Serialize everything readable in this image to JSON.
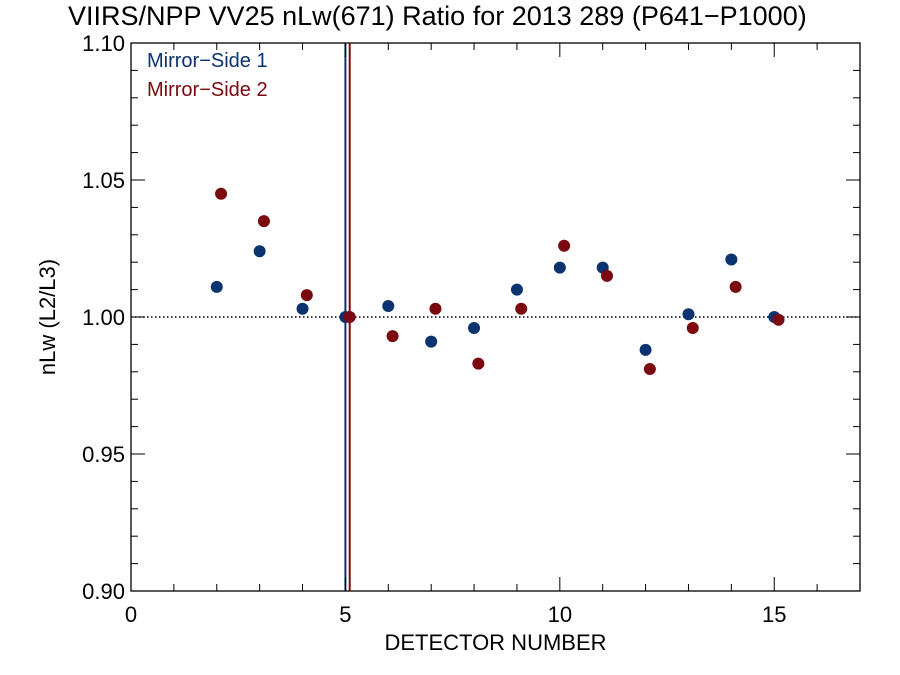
{
  "chart_data": {
    "type": "scatter",
    "title": "VIIRS/NPP VV25 nLw(671) Ratio for 2013 289 (P641−P1000)",
    "xlabel": "DETECTOR NUMBER",
    "ylabel": "nLw (L2/L3)",
    "xlim": [
      0,
      17
    ],
    "ylim": [
      0.9,
      1.1
    ],
    "x_ticks": [
      0,
      5,
      10,
      15
    ],
    "y_ticks": [
      0.9,
      0.95,
      1.0,
      1.05,
      1.1
    ],
    "x_tick_labels": [
      "0",
      "5",
      "10",
      "15"
    ],
    "y_tick_labels": [
      "0.90",
      "0.95",
      "1.00",
      "1.05",
      "1.10"
    ],
    "reference_line": {
      "y": 1.0,
      "style": "dotted",
      "color": "#000000"
    },
    "legend_position": "top-left",
    "series": [
      {
        "name": "Mirror−Side 1",
        "color": "#0b3370",
        "vline_x": 5,
        "points": [
          [
            2,
            1.011
          ],
          [
            3,
            1.024
          ],
          [
            4,
            1.003
          ],
          [
            5,
            1.0
          ],
          [
            6,
            1.004
          ],
          [
            7,
            0.991
          ],
          [
            8,
            0.996
          ],
          [
            9,
            1.01
          ],
          [
            10,
            1.018
          ],
          [
            11,
            1.018
          ],
          [
            12,
            0.988
          ],
          [
            13,
            1.001
          ],
          [
            14,
            1.021
          ],
          [
            15,
            1.0
          ]
        ]
      },
      {
        "name": "Mirror−Side 2",
        "color": "#7a0a0f",
        "vline_x": 5.1,
        "points": [
          [
            2.1,
            1.045
          ],
          [
            3.1,
            1.035
          ],
          [
            4.1,
            1.008
          ],
          [
            5.1,
            1.0
          ],
          [
            6.1,
            0.993
          ],
          [
            7.1,
            1.003
          ],
          [
            8.1,
            0.983
          ],
          [
            9.1,
            1.003
          ],
          [
            10.1,
            1.026
          ],
          [
            11.1,
            1.015
          ],
          [
            12.1,
            0.981
          ],
          [
            13.1,
            0.996
          ],
          [
            14.1,
            1.011
          ],
          [
            15.1,
            0.999
          ]
        ]
      }
    ]
  }
}
